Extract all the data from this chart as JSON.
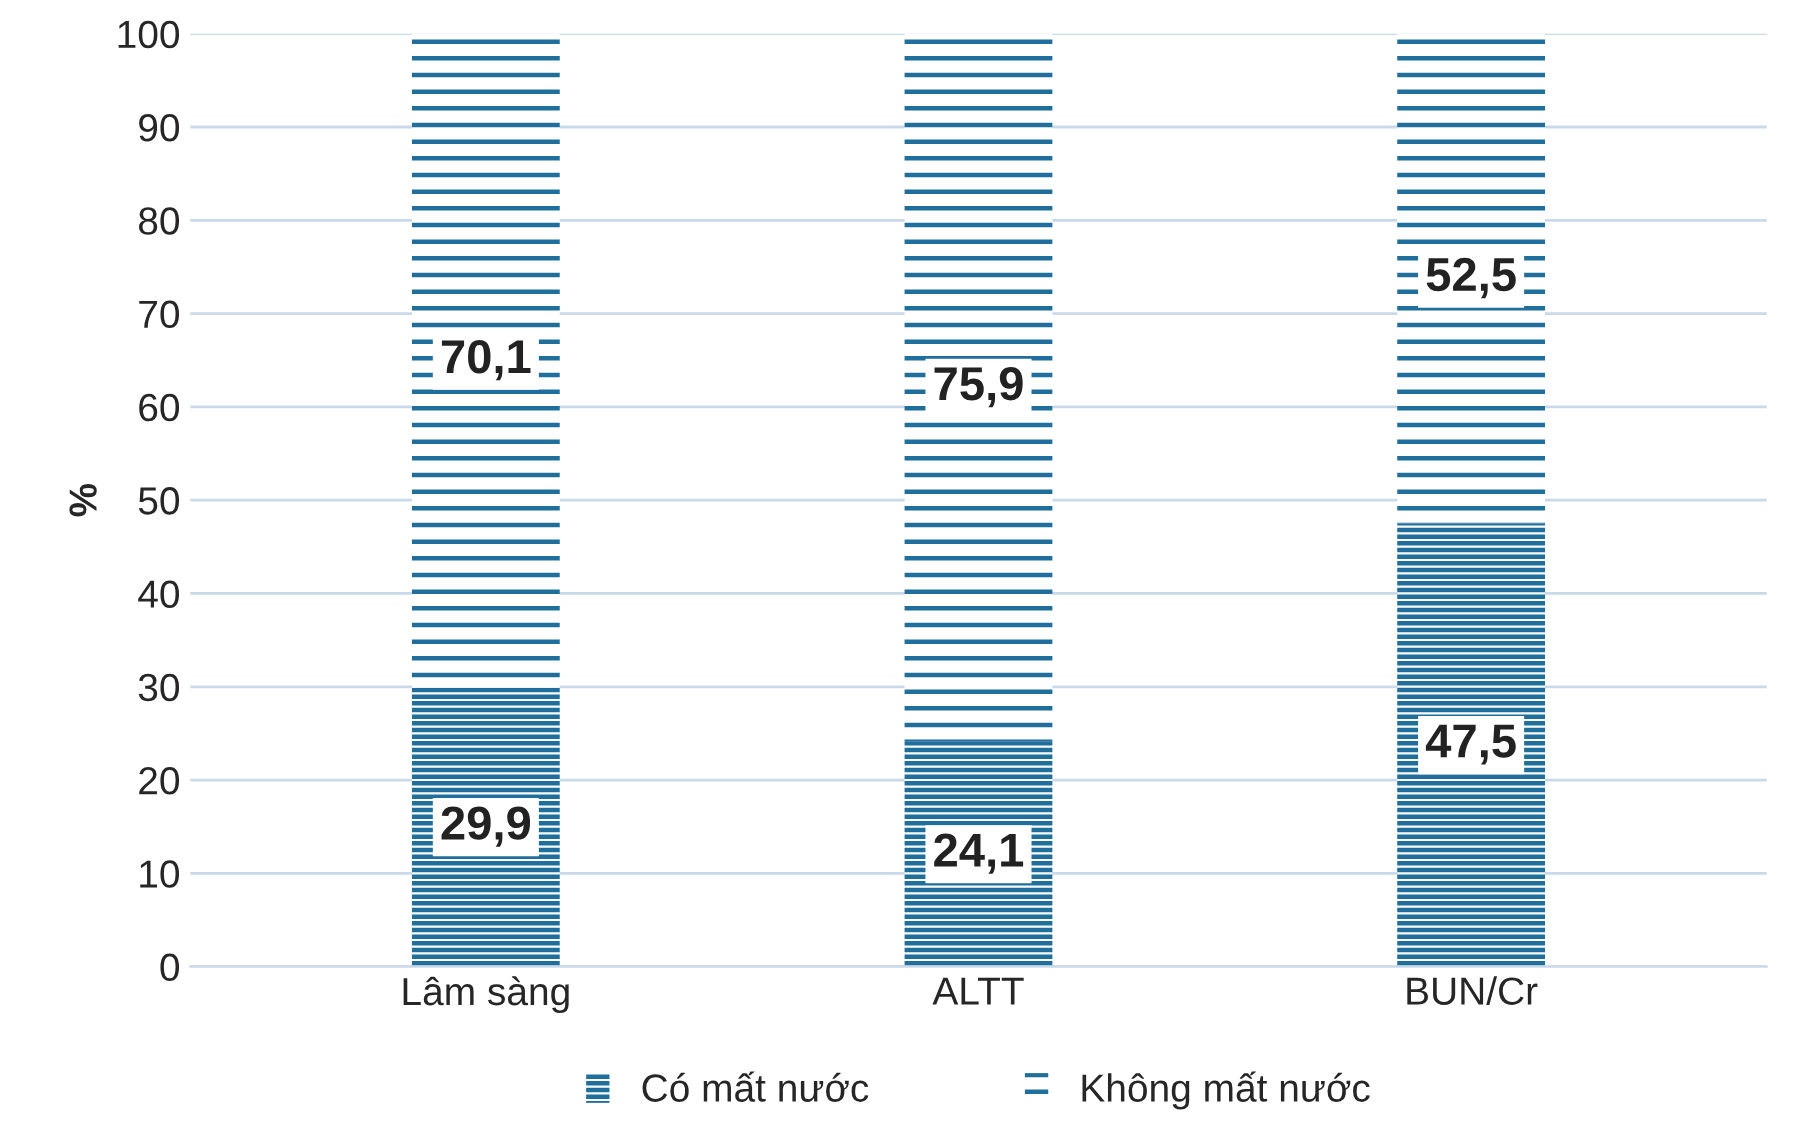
{
  "chart_data": {
    "type": "bar",
    "stacked": true,
    "ylabel": "%",
    "categories": [
      "Lâm sàng",
      "ALTT",
      "BUN/Cr"
    ],
    "series": [
      {
        "name": "Có mất nước",
        "color": "#1f6e9c",
        "values": [
          29.9,
          24.1,
          47.5
        ],
        "value_labels": [
          "29,9",
          "24,1",
          "47,5"
        ]
      },
      {
        "name": "Không mất nước",
        "color": "#1f6e9c",
        "values": [
          70.1,
          75.9,
          52.5
        ],
        "value_labels": [
          "70,1",
          "75,9",
          "52,5"
        ]
      }
    ],
    "ylim": [
      0,
      100
    ],
    "yticks": [
      0,
      10,
      20,
      30,
      40,
      50,
      60,
      70,
      80,
      90,
      100
    ],
    "grid": "y",
    "legend": "bottom"
  }
}
